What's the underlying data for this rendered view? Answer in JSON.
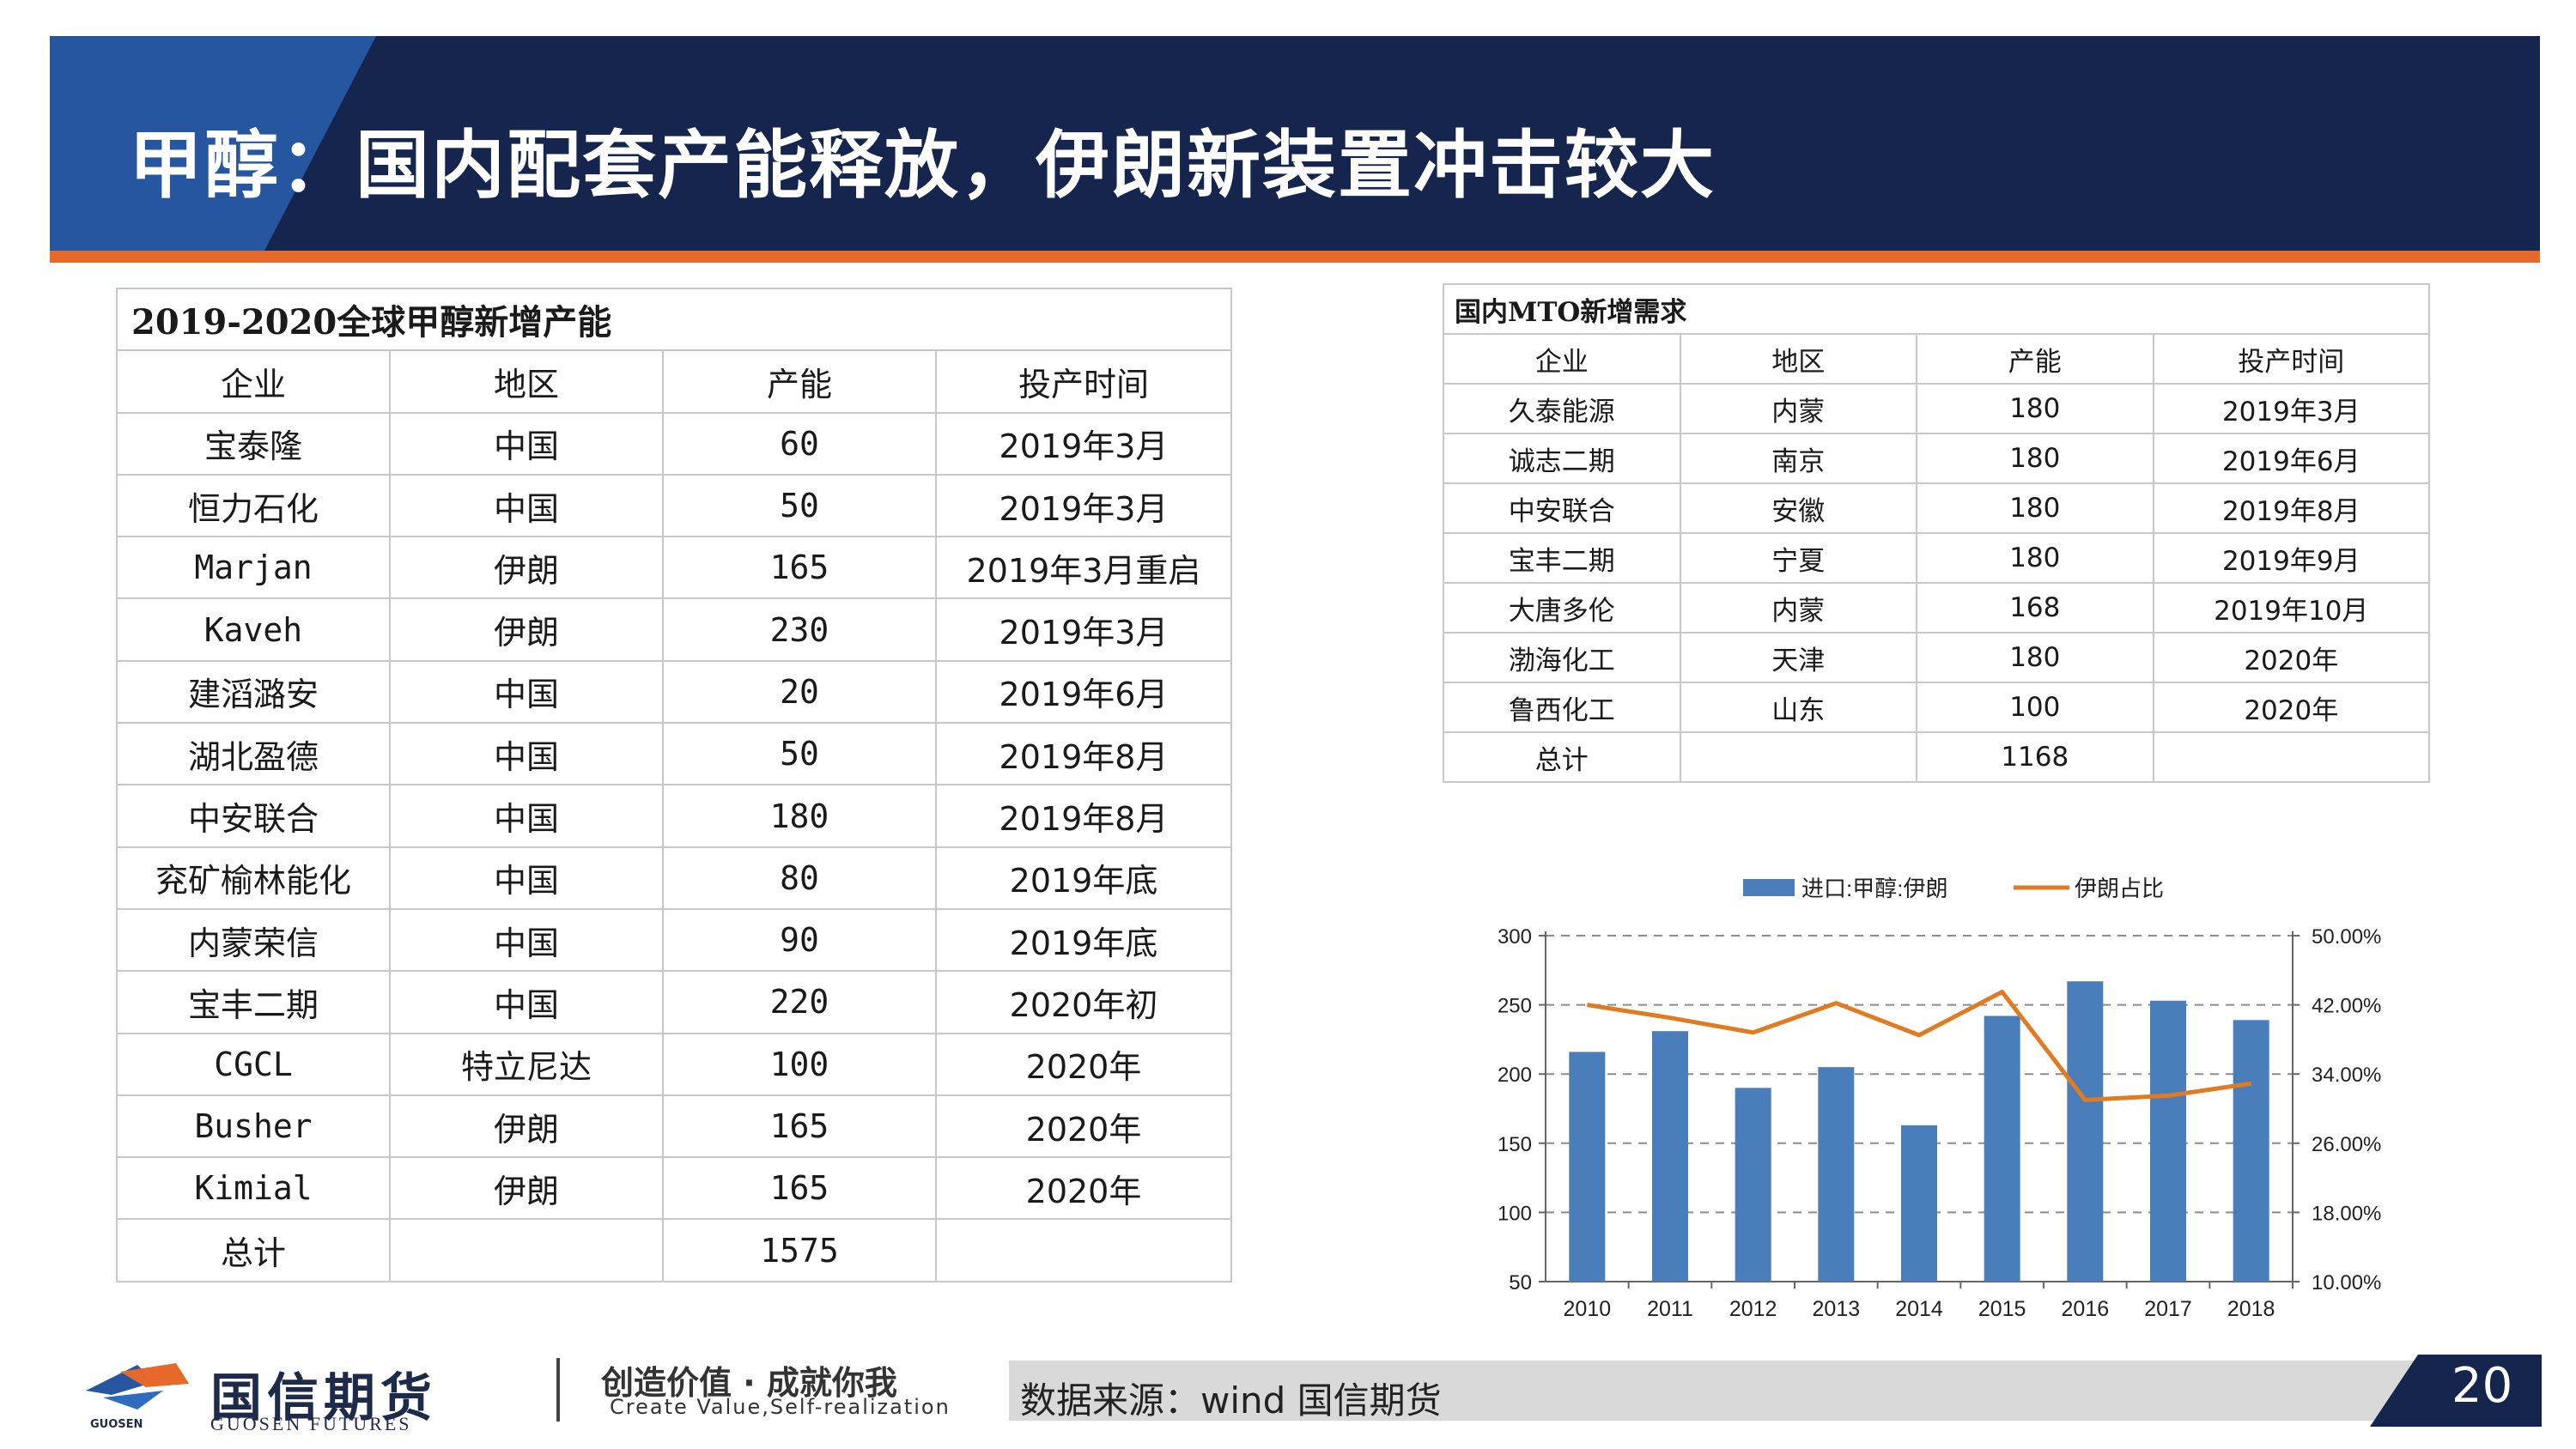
{
  "header": {
    "title": "甲醇：国内配套产能释放，伊朗新装置冲击较大"
  },
  "left_table": {
    "title": "2019-2020全球甲醇新增产能",
    "columns": [
      "企业",
      "地区",
      "产能",
      "投产时间"
    ],
    "rows": [
      [
        "宝泰隆",
        "中国",
        "60",
        "2019年3月"
      ],
      [
        "恒力石化",
        "中国",
        "50",
        "2019年3月"
      ],
      [
        "Marjan",
        "伊朗",
        "165",
        "2019年3月重启"
      ],
      [
        "Kaveh",
        "伊朗",
        "230",
        "2019年3月"
      ],
      [
        "建滔潞安",
        "中国",
        "20",
        "2019年6月"
      ],
      [
        "湖北盈德",
        "中国",
        "50",
        "2019年8月"
      ],
      [
        "中安联合",
        "中国",
        "180",
        "2019年8月"
      ],
      [
        "兖矿榆林能化",
        "中国",
        "80",
        "2019年底"
      ],
      [
        "内蒙荣信",
        "中国",
        "90",
        "2019年底"
      ],
      [
        "宝丰二期",
        "中国",
        "220",
        "2020年初"
      ],
      [
        "CGCL",
        "特立尼达",
        "100",
        "2020年"
      ],
      [
        "Busher",
        "伊朗",
        "165",
        "2020年"
      ],
      [
        "Kimial",
        "伊朗",
        "165",
        "2020年"
      ]
    ],
    "total": [
      "总计",
      "",
      "1575",
      ""
    ]
  },
  "right_table": {
    "title": "国内MTO新增需求",
    "columns": [
      "企业",
      "地区",
      "产能",
      "投产时间"
    ],
    "rows": [
      [
        "久泰能源",
        "内蒙",
        "180",
        "2019年3月"
      ],
      [
        "诚志二期",
        "南京",
        "180",
        "2019年6月"
      ],
      [
        "中安联合",
        "安徽",
        "180",
        "2019年8月"
      ],
      [
        "宝丰二期",
        "宁夏",
        "180",
        "2019年9月"
      ],
      [
        "大唐多伦",
        "内蒙",
        "168",
        "2019年10月"
      ],
      [
        "渤海化工",
        "天津",
        "180",
        "2020年"
      ],
      [
        "鲁西化工",
        "山东",
        "100",
        "2020年"
      ]
    ],
    "total": [
      "总计",
      "",
      "1168",
      ""
    ]
  },
  "chart_data": {
    "type": "bar",
    "categories": [
      "2010",
      "2011",
      "2012",
      "2013",
      "2014",
      "2015",
      "2016",
      "2017",
      "2018"
    ],
    "series": [
      {
        "name": "进口:甲醇:伊朗",
        "type": "bar",
        "axis": "left",
        "color": "#4a7ebb",
        "values": [
          216,
          231,
          190,
          205,
          163,
          242,
          267,
          253,
          239
        ]
      },
      {
        "name": "伊朗占比",
        "type": "line",
        "axis": "right",
        "color": "#e07b22",
        "values": [
          0.42,
          0.405,
          0.388,
          0.422,
          0.385,
          0.435,
          0.31,
          0.315,
          0.329
        ]
      }
    ],
    "ylim": [
      50,
      300
    ],
    "yticks": [
      "300",
      "250",
      "200",
      "150",
      "100",
      "50"
    ],
    "y2lim": [
      0.1,
      0.5
    ],
    "y2ticks": [
      "50.00%",
      "42.00%",
      "34.00%",
      "26.00%",
      "18.00%",
      "10.00%"
    ],
    "legend_position": "top",
    "grid": true
  },
  "footer": {
    "logo_cn": "国信期货",
    "logo_en": "GUOSEN FUTURES",
    "logo_small": "GUOSEN",
    "slogan_cn": "创造价值 · 成就你我",
    "slogan_en": "Create Value,Self-realization",
    "source": "数据来源：wind  国信期货",
    "page": "20"
  },
  "colors": {
    "banner": "#15254d",
    "banner_accent": "#25569f",
    "orange_rule": "#e6692a",
    "bar": "#4a7ebb",
    "line": "#e07b22"
  }
}
